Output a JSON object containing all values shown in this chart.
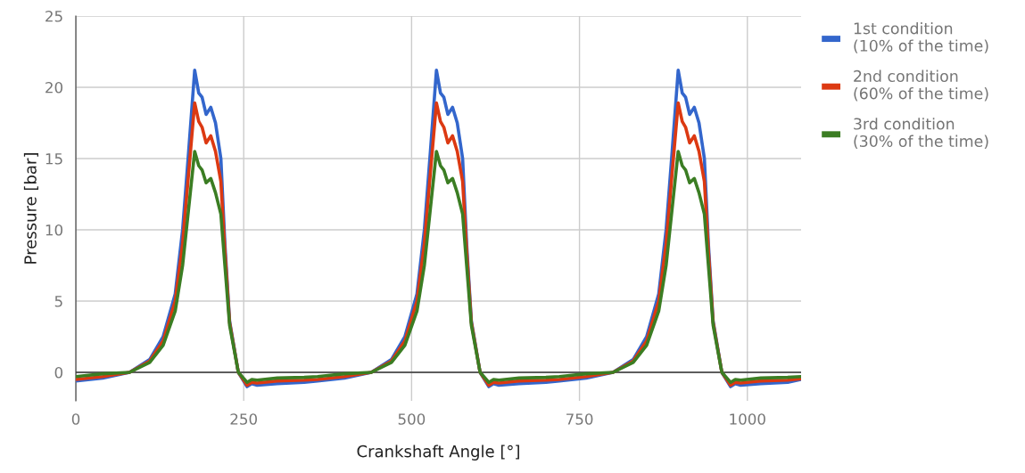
{
  "chart_data": {
    "type": "line",
    "xlabel": "Crankshaft Angle [°]",
    "ylabel": "Pressure [bar]",
    "x": [
      0,
      40,
      80,
      110,
      130,
      148,
      159,
      168,
      177,
      183,
      188,
      194,
      201,
      208,
      216,
      222,
      229,
      242,
      255,
      262,
      270,
      300,
      340,
      360,
      400,
      440,
      470,
      490,
      508,
      519,
      528,
      537,
      543,
      548,
      554,
      561,
      568,
      576,
      582,
      589,
      602,
      615,
      622,
      630,
      660,
      700,
      720,
      760,
      800,
      830,
      850,
      868,
      879,
      888,
      897,
      903,
      908,
      914,
      921,
      928,
      936,
      942,
      949,
      962,
      975,
      982,
      990,
      1020,
      1060,
      1080
    ],
    "series": [
      {
        "name": "1st condition\n(10% of the time)",
        "color": "#3366cc",
        "values": [
          -0.6,
          -0.4,
          0,
          0.9,
          2.5,
          5.5,
          10,
          15.5,
          21.2,
          19.6,
          19.3,
          18.1,
          18.6,
          17.5,
          15,
          9,
          3.6,
          0,
          -1,
          -0.8,
          -0.9,
          -0.8,
          -0.7,
          -0.6,
          -0.4,
          0,
          0.9,
          2.5,
          5.5,
          10,
          15.5,
          21.2,
          19.6,
          19.3,
          18.1,
          18.6,
          17.5,
          15,
          9,
          3.6,
          0,
          -1,
          -0.8,
          -0.9,
          -0.8,
          -0.7,
          -0.6,
          -0.4,
          0,
          0.9,
          2.5,
          5.5,
          10,
          15.5,
          21.2,
          19.6,
          19.3,
          18.1,
          18.6,
          17.5,
          15,
          9,
          3.6,
          0,
          -1,
          -0.8,
          -0.9,
          -0.8,
          -0.7,
          -0.5
        ]
      },
      {
        "name": "2nd condition\n(60% of the time)",
        "color": "#dc3912",
        "values": [
          -0.5,
          -0.3,
          0,
          0.8,
          2.2,
          5,
          9,
          14,
          18.9,
          17.6,
          17.2,
          16.1,
          16.6,
          15.5,
          13.4,
          8.5,
          3.5,
          0,
          -0.9,
          -0.7,
          -0.75,
          -0.6,
          -0.55,
          -0.5,
          -0.3,
          0,
          0.8,
          2.2,
          5,
          9,
          14,
          18.9,
          17.6,
          17.2,
          16.1,
          16.6,
          15.5,
          13.4,
          8.5,
          3.5,
          0,
          -0.9,
          -0.7,
          -0.75,
          -0.6,
          -0.55,
          -0.5,
          -0.3,
          0,
          0.8,
          2.2,
          5,
          9,
          14,
          18.9,
          17.6,
          17.2,
          16.1,
          16.6,
          15.5,
          13.4,
          8.5,
          3.5,
          0,
          -0.9,
          -0.7,
          -0.75,
          -0.6,
          -0.55,
          -0.45
        ]
      },
      {
        "name": "3rd condition\n(30% of the time)",
        "color": "#3b7d23",
        "values": [
          -0.3,
          -0.1,
          0,
          0.7,
          1.9,
          4.3,
          7.5,
          11.5,
          15.5,
          14.5,
          14.2,
          13.3,
          13.6,
          12.6,
          11.1,
          7.5,
          3.3,
          0,
          -0.7,
          -0.5,
          -0.55,
          -0.4,
          -0.35,
          -0.3,
          -0.1,
          0,
          0.7,
          1.9,
          4.3,
          7.5,
          11.5,
          15.5,
          14.5,
          14.2,
          13.3,
          13.6,
          12.6,
          11.1,
          7.5,
          3.3,
          0,
          -0.7,
          -0.5,
          -0.55,
          -0.4,
          -0.35,
          -0.3,
          -0.1,
          0,
          0.7,
          1.9,
          4.3,
          7.5,
          11.5,
          15.5,
          14.5,
          14.2,
          13.3,
          13.6,
          12.6,
          11.1,
          7.5,
          3.3,
          0,
          -0.7,
          -0.5,
          -0.55,
          -0.4,
          -0.35,
          -0.3
        ]
      }
    ],
    "xlim": [
      0,
      1080
    ],
    "xticks": [
      0,
      250,
      500,
      750,
      1000
    ],
    "ylim": [
      -2,
      25
    ],
    "yticks": [
      0,
      5,
      10,
      15,
      20,
      25
    ],
    "ref_lines": [
      {
        "axis": "y",
        "value": 0,
        "color": "#333333"
      }
    ],
    "grid": true,
    "legend": "right",
    "marker": "none",
    "line_style": "solid"
  }
}
